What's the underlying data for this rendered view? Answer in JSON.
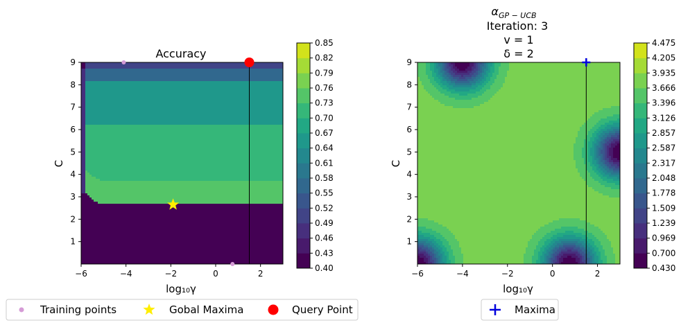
{
  "chart_data": [
    {
      "type": "heatmap",
      "title": "Accuracy",
      "xlabel": "log₁₀γ",
      "ylabel": "C",
      "xlim": [
        -6,
        3
      ],
      "ylim": [
        0,
        9
      ],
      "xticks": [
        "−6",
        "−4",
        "−2",
        "0",
        "2"
      ],
      "xtick_values": [
        -6,
        -4,
        -2,
        0,
        2
      ],
      "yticks": [
        "1",
        "2",
        "3",
        "4",
        "5",
        "6",
        "7",
        "8",
        "9"
      ],
      "ytick_values": [
        1,
        2,
        3,
        4,
        5,
        6,
        7,
        8,
        9
      ],
      "colorbar": {
        "min": 0.4,
        "max": 0.85,
        "ticks": [
          "0.40",
          "0.43",
          "0.46",
          "0.49",
          "0.52",
          "0.55",
          "0.58",
          "0.61",
          "0.64",
          "0.67",
          "0.70",
          "0.73",
          "0.76",
          "0.79",
          "0.82",
          "0.85"
        ]
      },
      "vertical_line_x": 1.5,
      "training_points": [
        [
          -4.1,
          9.0
        ],
        [
          0.75,
          0.0
        ]
      ],
      "global_maxima": [
        [
          -1.9,
          2.65
        ]
      ],
      "query_point": [
        [
          1.5,
          9.0
        ]
      ],
      "legend": [
        {
          "label": "Training points",
          "marker": "dot",
          "color": "#d59bd6"
        },
        {
          "label": "Gobal Maxima",
          "marker": "star",
          "color": "#ffee00"
        },
        {
          "label": "Query Point",
          "marker": "circle",
          "color": "#ff0000"
        }
      ]
    },
    {
      "type": "heatmap",
      "title_lines": [
        "α_GP-UCB",
        "Iteration: 3",
        "v = 1",
        "δ = 2"
      ],
      "title_alpha": "α",
      "title_alpha_sub": "GP − UCB",
      "title_iteration": "Iteration: 3",
      "title_v": "v = 1",
      "title_delta": "δ = 2",
      "xlabel": "log₁₀γ",
      "ylabel": "C",
      "xlim": [
        -6,
        3
      ],
      "ylim": [
        0,
        9
      ],
      "xticks": [
        "−6",
        "−4",
        "−2",
        "0",
        "2"
      ],
      "xtick_values": [
        -6,
        -4,
        -2,
        0,
        2
      ],
      "yticks": [
        "1",
        "2",
        "3",
        "4",
        "5",
        "6",
        "7",
        "8",
        "9"
      ],
      "ytick_values": [
        1,
        2,
        3,
        4,
        5,
        6,
        7,
        8,
        9
      ],
      "colorbar": {
        "min": 0.43,
        "max": 4.475,
        "ticks": [
          "0.430",
          "0.700",
          "0.969",
          "1.239",
          "1.509",
          "1.778",
          "2.048",
          "2.317",
          "2.587",
          "2.857",
          "3.126",
          "3.396",
          "3.666",
          "3.935",
          "4.205",
          "4.475"
        ]
      },
      "vertical_line_x": 1.5,
      "maxima": [
        [
          1.5,
          9.0
        ]
      ],
      "dips": [
        [
          -4.0,
          9.0
        ],
        [
          -6.0,
          0.0
        ],
        [
          0.75,
          0.0
        ],
        [
          3.0,
          5.0
        ]
      ],
      "legend": [
        {
          "label": "Maxima",
          "marker": "plus",
          "color": "#0000dd"
        }
      ]
    }
  ],
  "colors": {
    "viridis": [
      "#440154",
      "#481a6c",
      "#472f7d",
      "#414487",
      "#39568c",
      "#31688e",
      "#2a788e",
      "#23888e",
      "#1f988b",
      "#22a884",
      "#35b779",
      "#54c568",
      "#7ad151",
      "#a5db36",
      "#d2e21b",
      "#fde725"
    ]
  }
}
